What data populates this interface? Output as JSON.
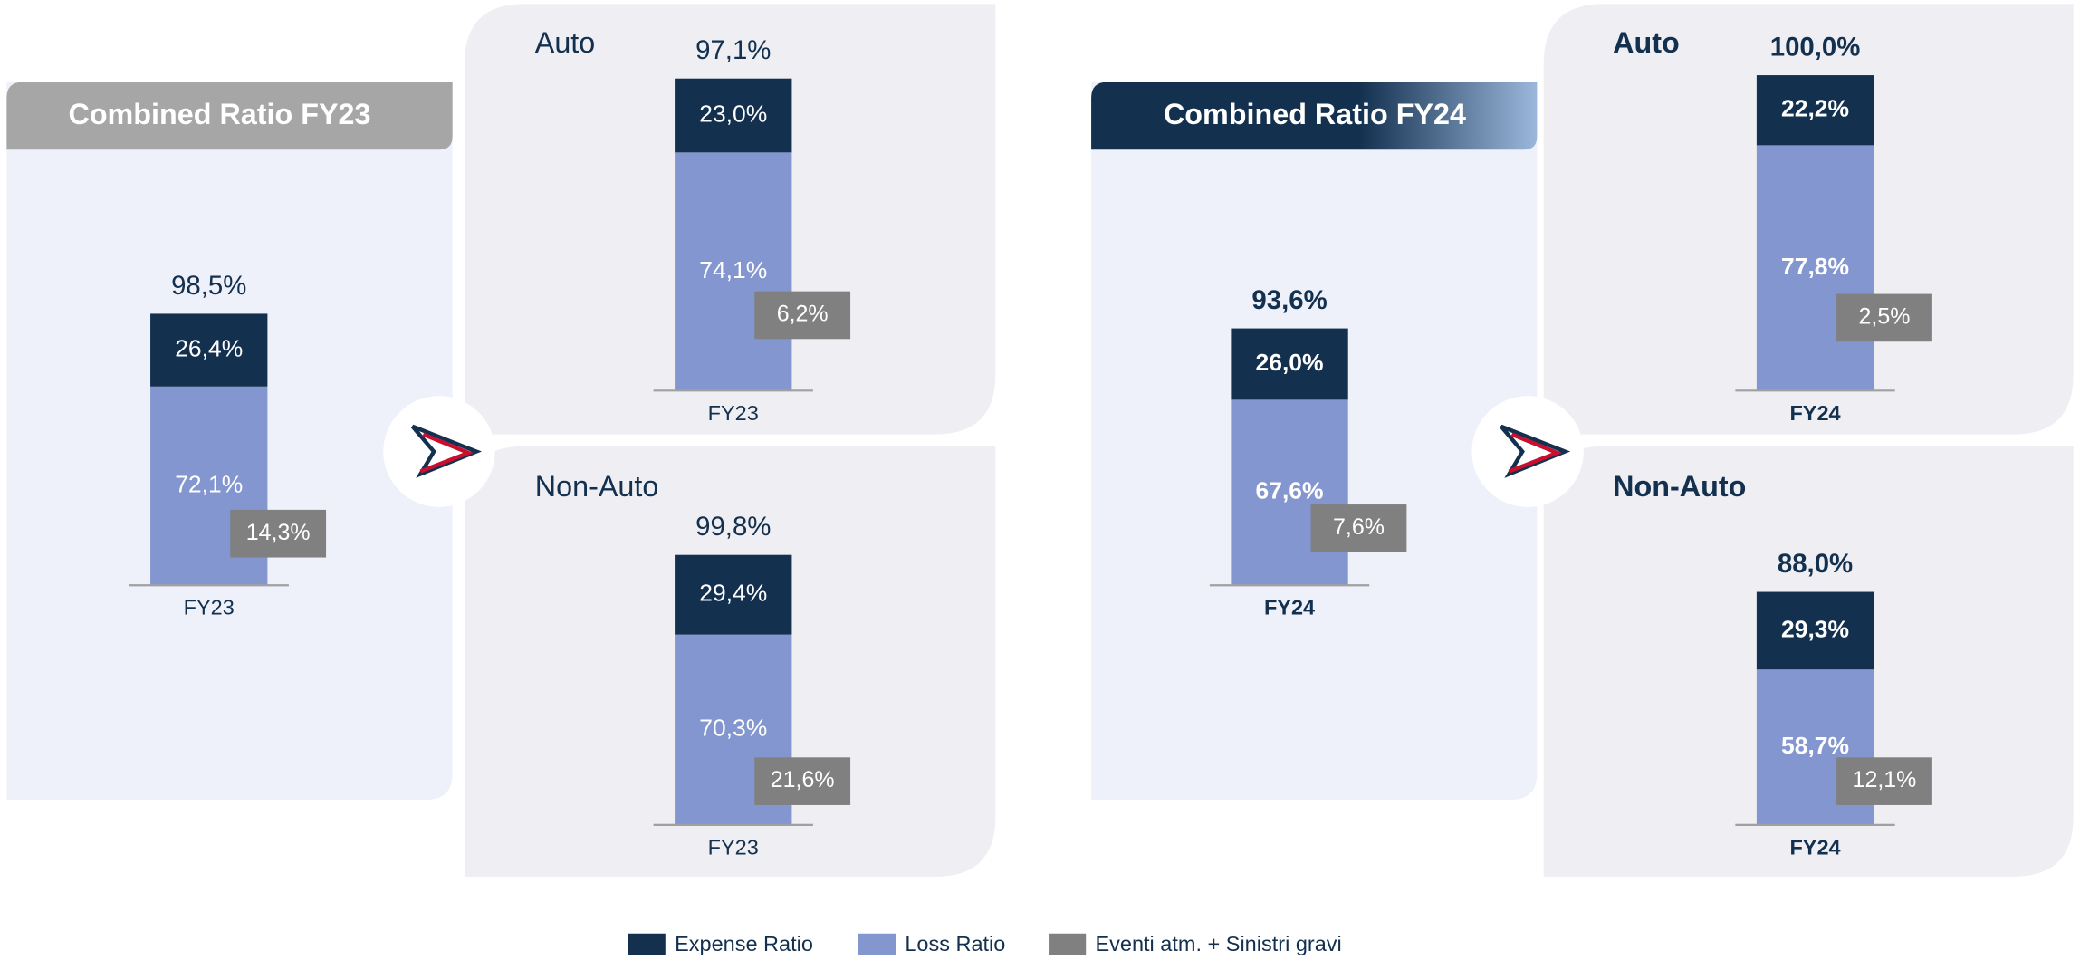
{
  "chart_data": [
    {
      "type": "bar",
      "title": "Combined Ratio FY23",
      "categories": [
        "FY23"
      ],
      "ylim": [
        0,
        110
      ],
      "total": {
        "values": [
          98.5
        ],
        "value_labels": [
          "98,5%"
        ]
      },
      "series": [
        {
          "values": [
            26.4
          ],
          "value_labels": [
            "26,4%"
          ]
        },
        {
          "values": [
            72.1
          ],
          "value_labels": [
            "72,1%"
          ]
        },
        {
          "values": [
            14.3
          ],
          "value_labels": [
            "14,3%"
          ]
        }
      ]
    },
    {
      "type": "bar",
      "title": "Auto",
      "categories": [
        "FY23"
      ],
      "ylim": [
        0,
        110
      ],
      "total": {
        "values": [
          97.1
        ],
        "value_labels": [
          "97,1%"
        ]
      },
      "series": [
        {
          "values": [
            23.0
          ],
          "value_labels": [
            "23,0%"
          ]
        },
        {
          "values": [
            74.1
          ],
          "value_labels": [
            "74,1%"
          ]
        },
        {
          "values": [
            6.2
          ],
          "value_labels": [
            "6,2%"
          ]
        }
      ]
    },
    {
      "type": "bar",
      "title": "Non-Auto",
      "categories": [
        "FY23"
      ],
      "ylim": [
        0,
        110
      ],
      "total": {
        "values": [
          99.8
        ],
        "value_labels": [
          "99,8%"
        ]
      },
      "series": [
        {
          "values": [
            29.4
          ],
          "value_labels": [
            "29,4%"
          ]
        },
        {
          "values": [
            70.3
          ],
          "value_labels": [
            "70,3%"
          ]
        },
        {
          "values": [
            21.6
          ],
          "value_labels": [
            "21,6%"
          ]
        }
      ]
    },
    {
      "type": "bar",
      "title": "Combined Ratio FY24",
      "categories": [
        "FY24"
      ],
      "ylim": [
        0,
        110
      ],
      "total": {
        "values": [
          93.6
        ],
        "value_labels": [
          "93,6%"
        ]
      },
      "series": [
        {
          "values": [
            26.0
          ],
          "value_labels": [
            "26,0%"
          ]
        },
        {
          "values": [
            67.6
          ],
          "value_labels": [
            "67,6%"
          ]
        },
        {
          "values": [
            7.6
          ],
          "value_labels": [
            "7,6%"
          ]
        }
      ]
    },
    {
      "type": "bar",
      "title": "Auto",
      "categories": [
        "FY24"
      ],
      "ylim": [
        0,
        110
      ],
      "total": {
        "values": [
          100.0
        ],
        "value_labels": [
          "100,0%"
        ]
      },
      "series": [
        {
          "values": [
            22.2
          ],
          "value_labels": [
            "22,2%"
          ]
        },
        {
          "values": [
            77.8
          ],
          "value_labels": [
            "77,8%"
          ]
        },
        {
          "values": [
            2.5
          ],
          "value_labels": [
            "2,5%"
          ]
        }
      ]
    },
    {
      "type": "bar",
      "title": "Non-Auto",
      "categories": [
        "FY24"
      ],
      "ylim": [
        0,
        110
      ],
      "total": {
        "values": [
          88.0
        ],
        "value_labels": [
          "88,0%"
        ]
      },
      "series": [
        {
          "values": [
            29.3
          ],
          "value_labels": [
            "29,3%"
          ]
        },
        {
          "values": [
            58.7
          ],
          "value_labels": [
            "58,7%"
          ]
        },
        {
          "values": [
            12.1
          ],
          "value_labels": [
            "12,1%"
          ]
        }
      ]
    }
  ],
  "legend": [
    {
      "name": "Expense Ratio",
      "color": "#13304f"
    },
    {
      "name": "Loss Ratio",
      "color": "#8496cf"
    },
    {
      "name": "Eventi atm. + Sinistri gravi",
      "color": "#808080"
    }
  ]
}
